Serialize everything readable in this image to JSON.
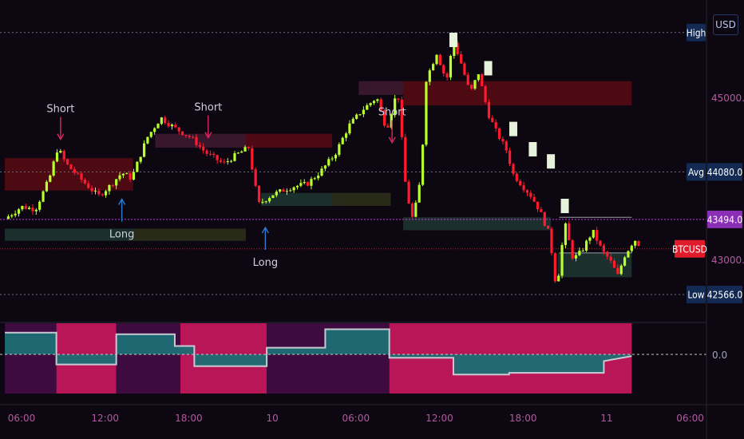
{
  "currency": "USD",
  "colors": {
    "background": "#0c0710",
    "bull": "#b9ff2e",
    "bear": "#ff1a2e",
    "resistance_zone": "#5a0a14",
    "support_zone": "#1f3633",
    "crosshair": "#c23ce6",
    "osc_bull": "#1b6e74",
    "osc_bear": "#c2185b",
    "osc_bg_bear": "#3a0a3a"
  },
  "chart_data": {
    "type": "candlestick",
    "symbol": "BTCUSD",
    "price_axis": {
      "ticks": [
        {
          "value": 45000.0,
          "label": "45000.0"
        },
        {
          "value": 43000.0,
          "label": "43000.0"
        }
      ],
      "range": [
        42300,
        45850
      ]
    },
    "levels": [
      {
        "name": "High",
        "value": 45800,
        "label": ""
      },
      {
        "name": "Avg",
        "value": 44080,
        "label": "44080.0"
      },
      {
        "name": "Current",
        "value": 43494,
        "label": "43494.0"
      },
      {
        "name": "BTCUSD",
        "value": 43130,
        "label": ""
      },
      {
        "name": "Low",
        "value": 42566,
        "label": "42566.0"
      }
    ],
    "time_axis": {
      "ticks": [
        {
          "t": 0,
          "label": "06:00"
        },
        {
          "t": 6,
          "label": "12:00"
        },
        {
          "t": 12,
          "label": "18:00"
        },
        {
          "t": 18,
          "label": "10"
        },
        {
          "t": 24,
          "label": "06:00"
        },
        {
          "t": 30,
          "label": "12:00"
        },
        {
          "t": 36,
          "label": "18:00"
        },
        {
          "t": 42,
          "label": "11"
        },
        {
          "t": 48,
          "label": "06:00"
        }
      ]
    },
    "anchors": [
      {
        "t": -1.2,
        "p": 43500
      },
      {
        "t": 0.0,
        "p": 43650
      },
      {
        "t": 1.0,
        "p": 43620
      },
      {
        "t": 2.0,
        "p": 44000
      },
      {
        "t": 2.6,
        "p": 44380
      },
      {
        "t": 3.2,
        "p": 44180
      },
      {
        "t": 4.5,
        "p": 43950
      },
      {
        "t": 5.5,
        "p": 43780
      },
      {
        "t": 6.3,
        "p": 43900
      },
      {
        "t": 7.2,
        "p": 44070
      },
      {
        "t": 7.9,
        "p": 44000
      },
      {
        "t": 9.0,
        "p": 44500
      },
      {
        "t": 10.0,
        "p": 44750
      },
      {
        "t": 11.0,
        "p": 44620
      },
      {
        "t": 12.2,
        "p": 44500
      },
      {
        "t": 13.2,
        "p": 44320
      },
      {
        "t": 14.5,
        "p": 44180
      },
      {
        "t": 15.5,
        "p": 44300
      },
      {
        "t": 16.3,
        "p": 44380
      },
      {
        "t": 17.0,
        "p": 43680
      },
      {
        "t": 18.0,
        "p": 43800
      },
      {
        "t": 19.5,
        "p": 43900
      },
      {
        "t": 20.5,
        "p": 43930
      },
      {
        "t": 21.5,
        "p": 44090
      },
      {
        "t": 22.5,
        "p": 44300
      },
      {
        "t": 23.5,
        "p": 44650
      },
      {
        "t": 24.5,
        "p": 44850
      },
      {
        "t": 25.5,
        "p": 45000
      },
      {
        "t": 26.2,
        "p": 44600
      },
      {
        "t": 27.0,
        "p": 45100
      },
      {
        "t": 27.6,
        "p": 43850
      },
      {
        "t": 28.1,
        "p": 43480
      },
      {
        "t": 28.7,
        "p": 44050
      },
      {
        "t": 29.0,
        "p": 45200
      },
      {
        "t": 29.8,
        "p": 45550
      },
      {
        "t": 30.5,
        "p": 45200
      },
      {
        "t": 31.0,
        "p": 45700
      },
      {
        "t": 31.5,
        "p": 45450
      },
      {
        "t": 32.2,
        "p": 45050
      },
      {
        "t": 32.8,
        "p": 45300
      },
      {
        "t": 33.5,
        "p": 44800
      },
      {
        "t": 34.0,
        "p": 44600
      },
      {
        "t": 34.8,
        "p": 44350
      },
      {
        "t": 35.3,
        "p": 44050
      },
      {
        "t": 36.0,
        "p": 43900
      },
      {
        "t": 36.6,
        "p": 43780
      },
      {
        "t": 37.2,
        "p": 43600
      },
      {
        "t": 37.9,
        "p": 43300
      },
      {
        "t": 38.4,
        "p": 42620
      },
      {
        "t": 39.0,
        "p": 43450
      },
      {
        "t": 39.6,
        "p": 43000
      },
      {
        "t": 40.2,
        "p": 43100
      },
      {
        "t": 41.0,
        "p": 43350
      },
      {
        "t": 41.7,
        "p": 43100
      },
      {
        "t": 42.2,
        "p": 43000
      },
      {
        "t": 42.8,
        "p": 42800
      },
      {
        "t": 43.3,
        "p": 43050
      },
      {
        "t": 44.0,
        "p": 43250
      },
      {
        "t": 44.5,
        "p": 43150
      }
    ],
    "zones": [
      {
        "kind": "resistance",
        "t0": -1.2,
        "t1": 8.0,
        "top": 44250,
        "bottom": 43850
      },
      {
        "kind": "support",
        "t0": -1.2,
        "t1": 16.1,
        "top": 43380,
        "bottom": 43230
      },
      {
        "kind": "resistance-light",
        "t0": 9.6,
        "t1": 16.1,
        "top": 44550,
        "bottom": 44380
      },
      {
        "kind": "resistance",
        "t0": 16.1,
        "t1": 22.3,
        "top": 44550,
        "bottom": 44380
      },
      {
        "kind": "support",
        "t0": 17.2,
        "t1": 26.5,
        "top": 43820,
        "bottom": 43660
      },
      {
        "kind": "resistance-light",
        "t0": 24.2,
        "t1": 27.4,
        "top": 45200,
        "bottom": 45030
      },
      {
        "kind": "resistance",
        "t0": 27.4,
        "t1": 43.8,
        "top": 45200,
        "bottom": 44900
      },
      {
        "kind": "support",
        "t0": 27.4,
        "t1": 38.0,
        "top": 43520,
        "bottom": 43360
      },
      {
        "kind": "support",
        "t0": 38.5,
        "t1": 43.8,
        "top": 43080,
        "bottom": 42780
      }
    ],
    "signals": [
      {
        "text": "Short",
        "t": 2.8,
        "type": "short",
        "price": 44600
      },
      {
        "text": "Short",
        "t": 13.4,
        "type": "short",
        "price": 44620
      },
      {
        "text": "Short",
        "t": 26.6,
        "type": "short",
        "price": 44560
      },
      {
        "text": "Long",
        "t": 7.2,
        "type": "long",
        "price": 43350
      },
      {
        "text": "Long",
        "t": 17.5,
        "type": "long",
        "price": 43000
      }
    ],
    "oscillator": {
      "zero_label": "0.0",
      "segments": [
        {
          "t0": -1.2,
          "t1": 2.5,
          "sign": 1,
          "v": 0.55
        },
        {
          "t0": 2.5,
          "t1": 6.8,
          "sign": -1,
          "v": -0.55
        },
        {
          "t0": 6.8,
          "t1": 11.4,
          "sign": 1,
          "v": 0.55
        },
        {
          "t0": 11.4,
          "t1": 17.6,
          "sign": -1,
          "v": -0.6
        },
        {
          "t0": 17.6,
          "t1": 26.4,
          "sign": 1,
          "v": 0.5
        },
        {
          "t0": 26.4,
          "t1": 43.8,
          "sign": -1,
          "v": -0.6
        }
      ],
      "steps": [
        {
          "t": -1.2,
          "v": 0.65
        },
        {
          "t": 2.5,
          "v": 0.65
        },
        {
          "t": 2.5,
          "v": -0.3
        },
        {
          "t": 6.8,
          "v": -0.3
        },
        {
          "t": 6.8,
          "v": 0.6
        },
        {
          "t": 11.0,
          "v": 0.6
        },
        {
          "t": 11.0,
          "v": 0.25
        },
        {
          "t": 12.4,
          "v": 0.25
        },
        {
          "t": 12.4,
          "v": -0.35
        },
        {
          "t": 17.6,
          "v": -0.35
        },
        {
          "t": 17.6,
          "v": 0.2
        },
        {
          "t": 21.8,
          "v": 0.2
        },
        {
          "t": 21.8,
          "v": 0.75
        },
        {
          "t": 26.4,
          "v": 0.75
        },
        {
          "t": 26.4,
          "v": -0.1
        },
        {
          "t": 31.0,
          "v": -0.1
        },
        {
          "t": 31.0,
          "v": -0.6
        },
        {
          "t": 35.0,
          "v": -0.6
        },
        {
          "t": 35.0,
          "v": -0.55
        },
        {
          "t": 41.8,
          "v": -0.55
        },
        {
          "t": 41.8,
          "v": -0.2
        },
        {
          "t": 43.8,
          "v": -0.05
        }
      ]
    }
  }
}
